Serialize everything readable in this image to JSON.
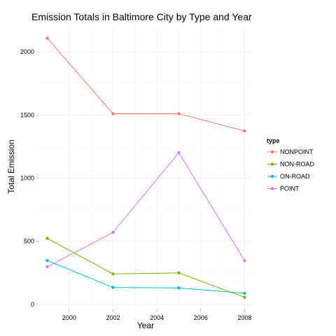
{
  "chart_data": {
    "type": "line",
    "title": "Emission Totals in Baltimore City by Type and Year",
    "xlabel": "Year",
    "ylabel": "Total Emission",
    "x": [
      1999,
      2002,
      2005,
      2008
    ],
    "xlim": [
      1998.6,
      2008.4
    ],
    "ylim": [
      -40,
      2200
    ],
    "xticks": [
      2000,
      2002,
      2004,
      2006,
      2008
    ],
    "yticks": [
      0,
      500,
      1000,
      1500,
      2000
    ],
    "grid": true,
    "legend": {
      "title": "type",
      "position": "right"
    },
    "series": [
      {
        "name": "NONPOINT",
        "color": "#F8766D",
        "values": [
          2108,
          1510,
          1510,
          1373
        ]
      },
      {
        "name": "NON-ROAD",
        "color": "#7CAE00",
        "values": [
          523,
          241,
          249,
          56
        ]
      },
      {
        "name": "ON-ROAD",
        "color": "#00BFC4",
        "values": [
          347,
          134,
          130,
          88
        ]
      },
      {
        "name": "POINT",
        "color": "#C77CFF",
        "values": [
          297,
          570,
          1202,
          345
        ]
      }
    ]
  }
}
